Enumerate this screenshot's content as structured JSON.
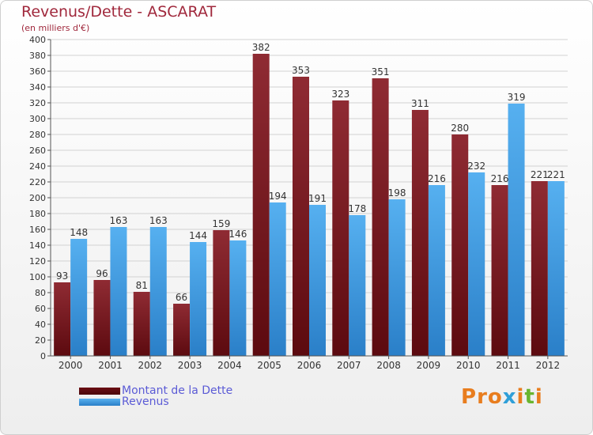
{
  "title": "Revenus/Dette - ASCARAT",
  "subtitle": "(en milliers d'€)",
  "chart_data": {
    "type": "bar",
    "categories": [
      "2000",
      "2001",
      "2002",
      "2003",
      "2004",
      "2005",
      "2006",
      "2007",
      "2008",
      "2009",
      "2010",
      "2011",
      "2012"
    ],
    "series": [
      {
        "name": "Montant de la Dette",
        "color": "#7a1a20",
        "values": [
          93,
          96,
          81,
          66,
          159,
          382,
          353,
          323,
          351,
          311,
          280,
          216,
          221
        ]
      },
      {
        "name": "Revenus",
        "color": "#3d97e0",
        "values": [
          148,
          163,
          163,
          144,
          146,
          194,
          191,
          178,
          198,
          216,
          232,
          319,
          221
        ]
      }
    ],
    "y_ticks": [
      "0",
      "20",
      "40",
      "60",
      "80",
      "100",
      "120",
      "140",
      "160",
      "180",
      "200",
      "220",
      "240",
      "260",
      "280",
      "300",
      "320",
      "340",
      "360",
      "380",
      "400"
    ],
    "ylim": [
      0,
      400
    ],
    "grid": true,
    "legend_position": "bottom-left"
  },
  "legend": [
    {
      "label": "Montant de la Dette",
      "color": "#6b0f14"
    },
    {
      "label": "Revenus",
      "color": "#3d97e0"
    }
  ],
  "logo": {
    "text": "Proxiti",
    "letters": [
      "P",
      "r",
      "o",
      "x",
      "i",
      "t",
      "i"
    ],
    "colors": [
      "#e87d1e",
      "#e87d1e",
      "#e87d1e",
      "#2f9fd8",
      "#e87d1e",
      "#69b52f",
      "#e87d1e"
    ]
  }
}
